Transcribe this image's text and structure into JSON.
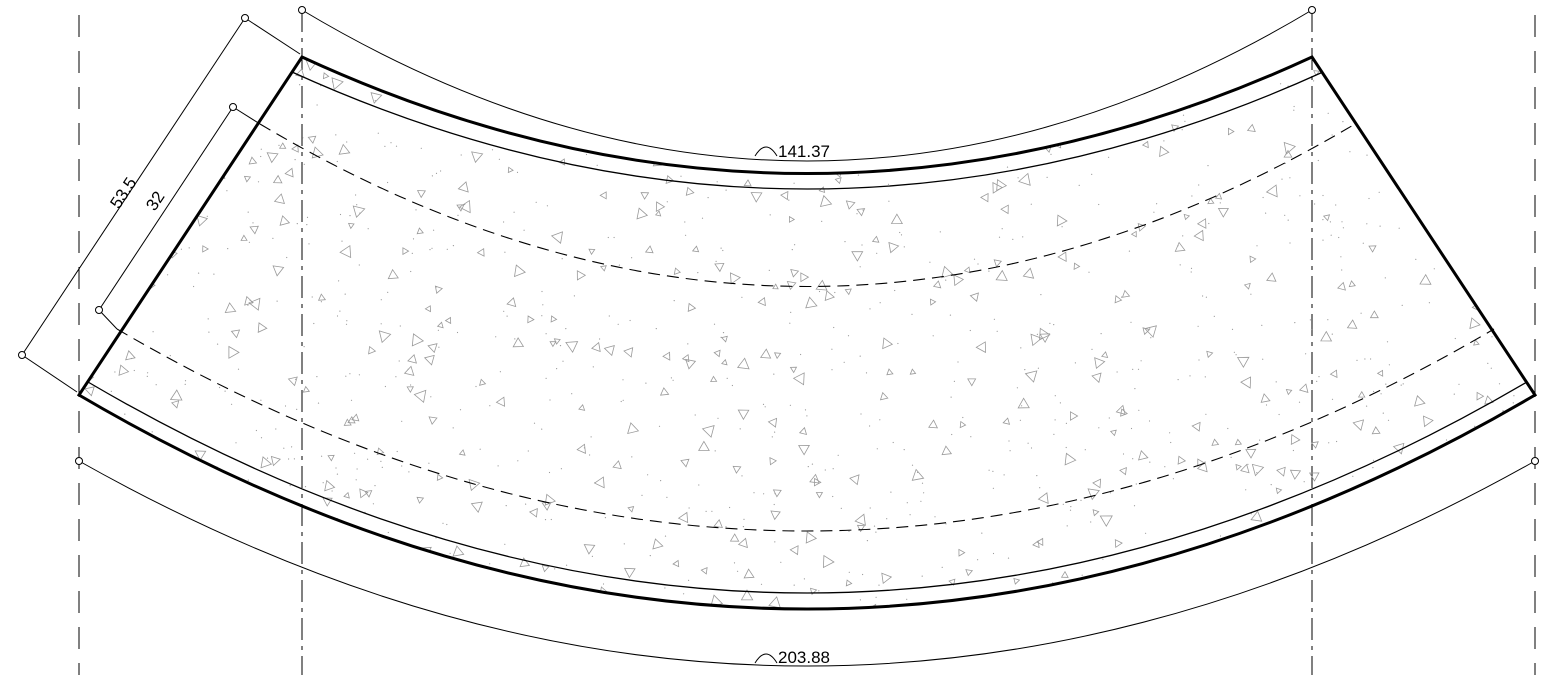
{
  "drawing": {
    "outer_arc_length": "141.37",
    "inner_arc_length": "203.88",
    "overall_width": "53.5",
    "inner_width": "32",
    "arc_symbol": "arc-length-symbol"
  },
  "colors": {
    "line": "#000000",
    "hatch": "#9a9a9a",
    "background": "#ffffff"
  }
}
